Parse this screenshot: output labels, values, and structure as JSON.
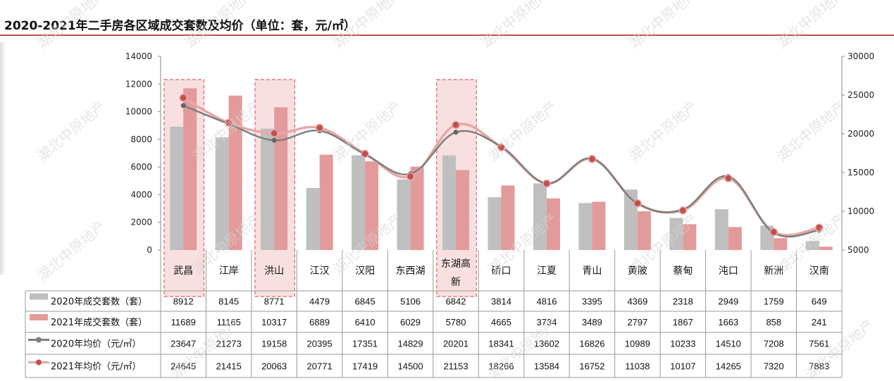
{
  "title": "2020-2021年二手房各区域成交套数及均价（单位：套，元/㎡）",
  "watermark": "湖北中原地产",
  "chart_data": {
    "type": "bar+line",
    "title": "2020-2021年二手房各区域成交套数及均价（单位：套，元/㎡）",
    "categories": [
      "武昌",
      "江岸",
      "洪山",
      "江汉",
      "汉阳",
      "东西湖",
      "东湖高新",
      "硚口",
      "江夏",
      "青山",
      "黄陂",
      "蔡甸",
      "沌口",
      "新洲",
      "汉南"
    ],
    "highlighted_categories": [
      "武昌",
      "洪山",
      "东湖高新"
    ],
    "left_axis": {
      "min": 0,
      "max": 14000,
      "ticks": [
        0,
        2000,
        4000,
        6000,
        8000,
        10000,
        12000,
        14000
      ]
    },
    "right_axis": {
      "min": 5000,
      "max": 30000,
      "ticks": [
        5000,
        10000,
        15000,
        20000,
        25000,
        30000
      ]
    },
    "series": [
      {
        "name": "2020年成交套数（套）",
        "type": "bar",
        "axis": "left",
        "color": "#bfbfbf",
        "values": [
          8912,
          8145,
          8771,
          4479,
          6845,
          5106,
          6842,
          3814,
          4816,
          3395,
          4369,
          2318,
          2949,
          1759,
          649
        ]
      },
      {
        "name": "2021年成交套数（套）",
        "type": "bar",
        "axis": "left",
        "color": "#e39a9a",
        "values": [
          11689,
          11165,
          10317,
          6889,
          6410,
          6029,
          5780,
          4665,
          3734,
          3489,
          2797,
          1867,
          1663,
          858,
          241
        ]
      },
      {
        "name": "2020年均价（元/㎡）",
        "type": "line",
        "axis": "right",
        "color": "#7f7f7f",
        "values": [
          23647,
          21273,
          19158,
          20395,
          17351,
          14829,
          20201,
          18341,
          13602,
          16826,
          10989,
          10233,
          14510,
          7208,
          7561
        ]
      },
      {
        "name": "2021年均价（元/㎡）",
        "type": "line",
        "axis": "right",
        "color": "#c0504d",
        "line_color": "#e8a7a7",
        "values": [
          24645,
          21415,
          20063,
          20771,
          17419,
          14500,
          21153,
          18266,
          13584,
          16752,
          11038,
          10107,
          14265,
          7320,
          7883
        ]
      }
    ],
    "legend": "table-below",
    "grid": false
  }
}
